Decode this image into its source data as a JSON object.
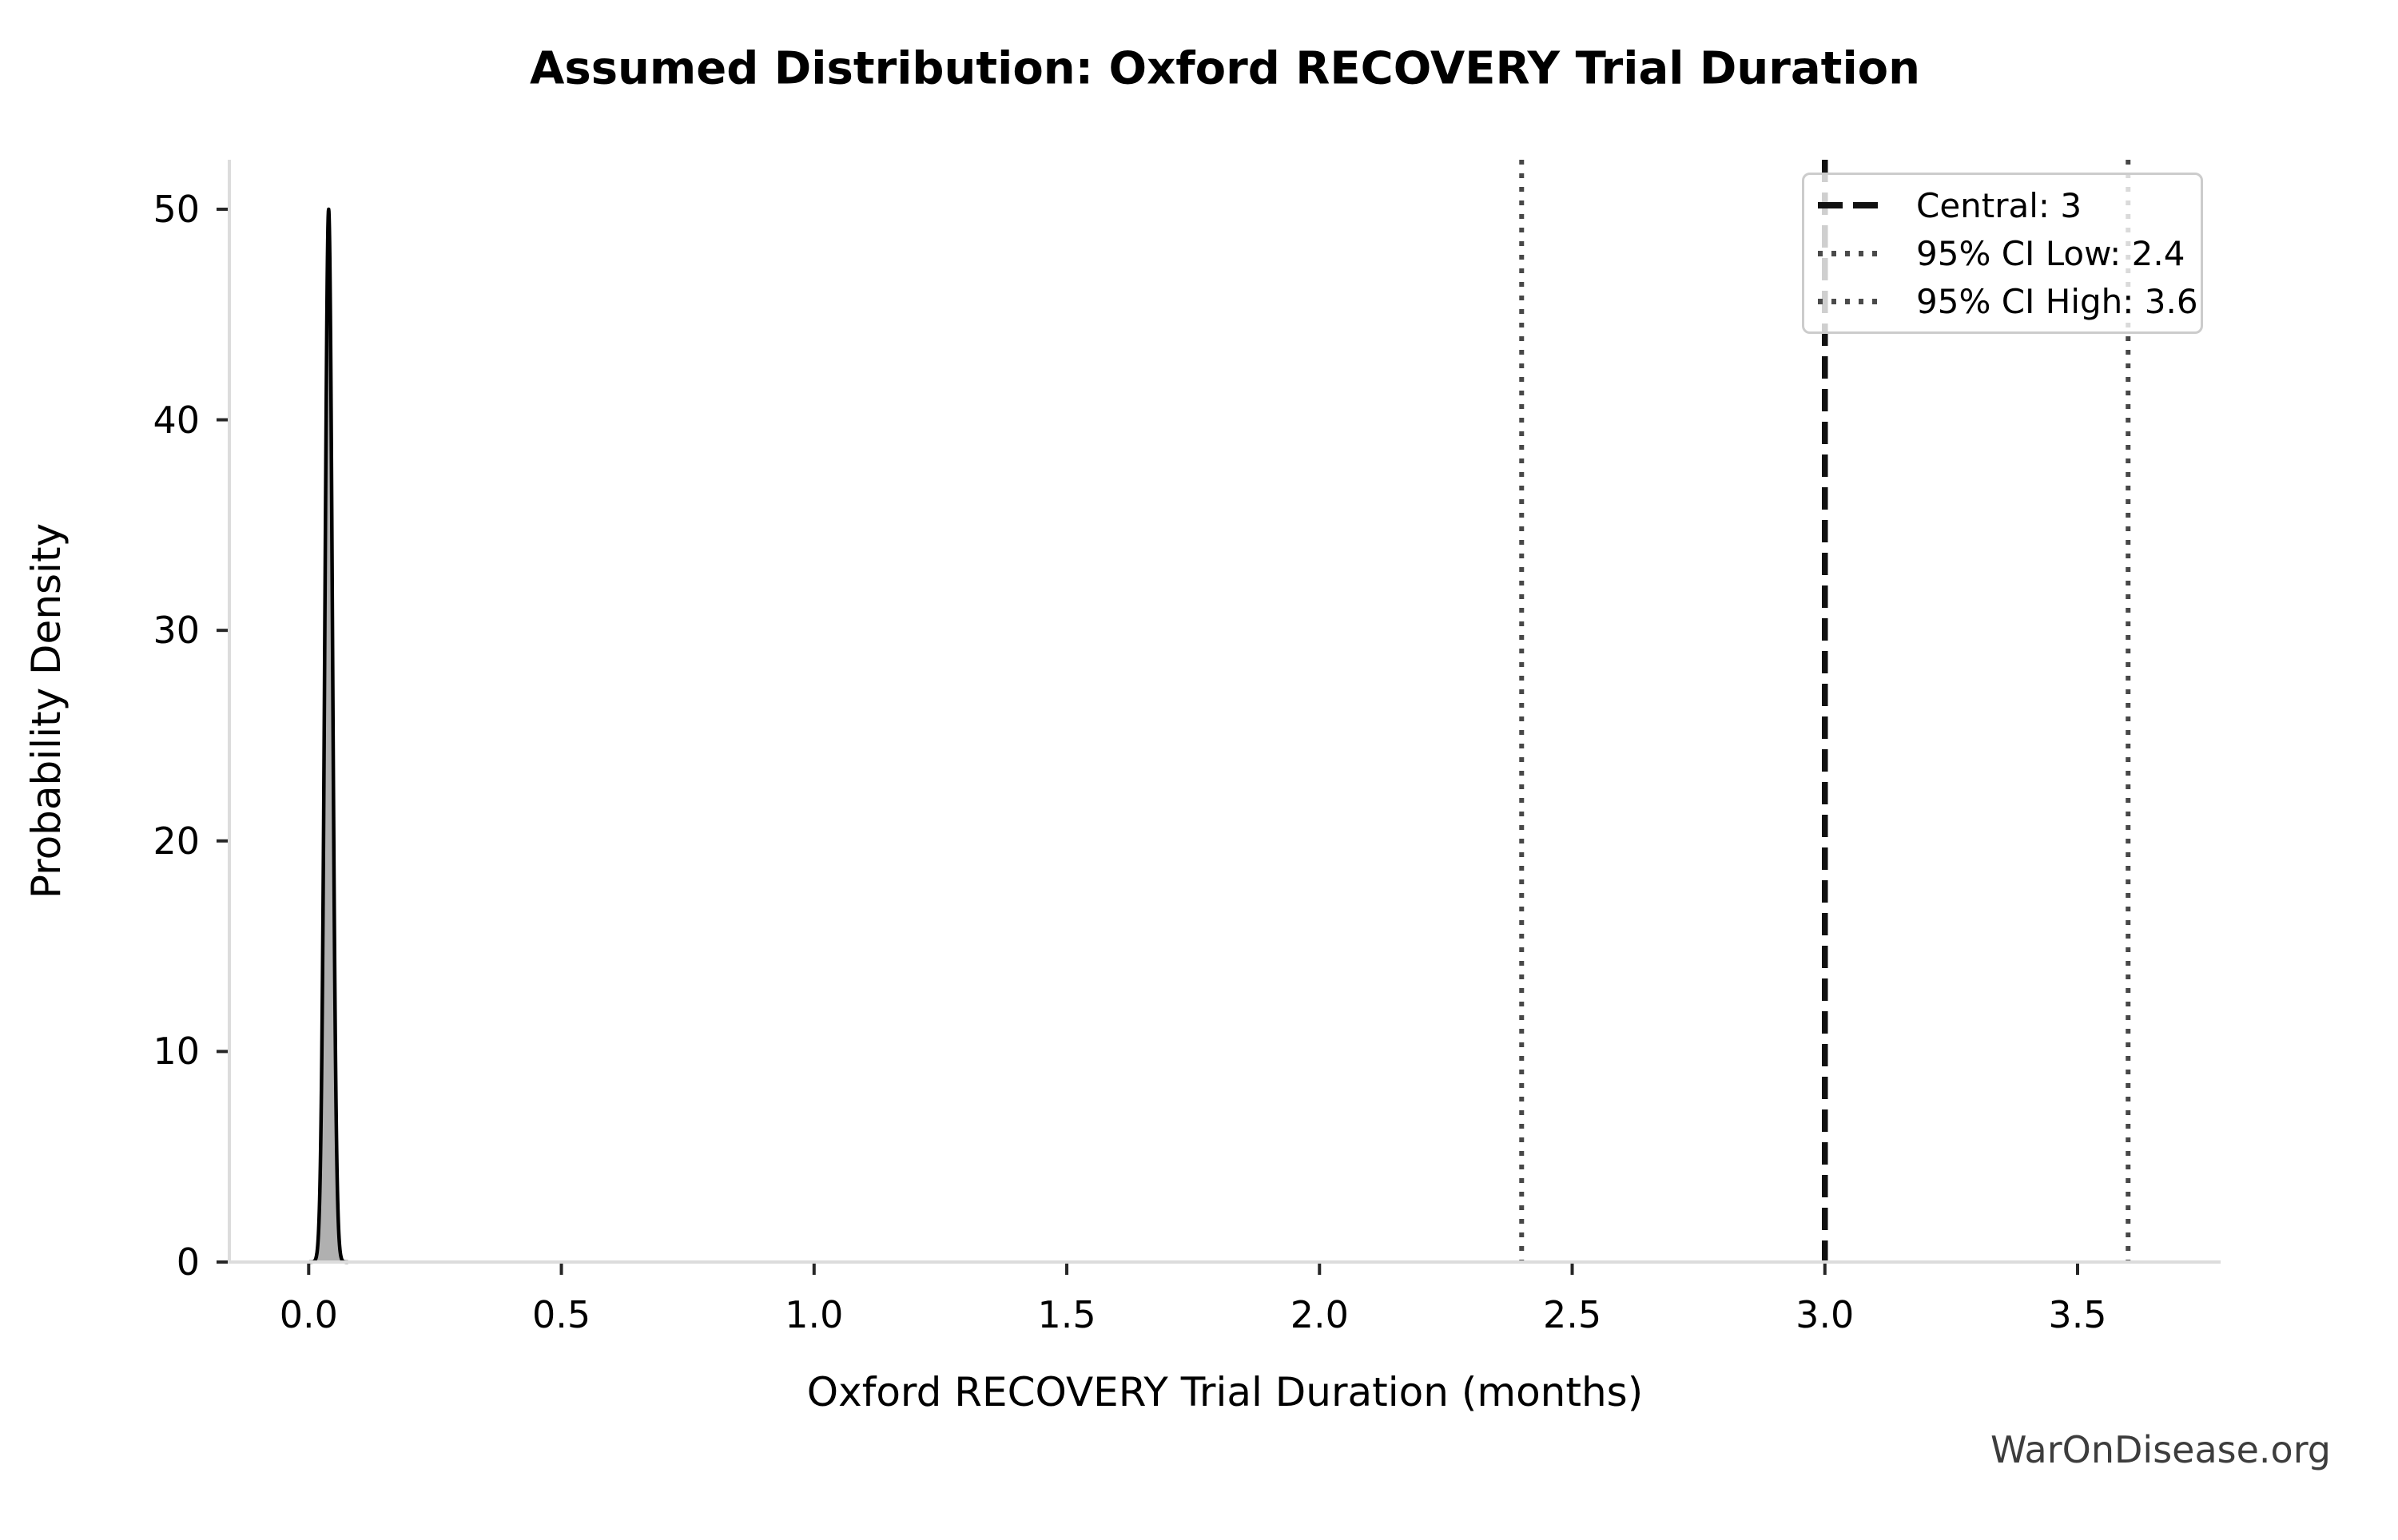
{
  "title": "Assumed Distribution: Oxford RECOVERY Trial Duration",
  "watermark": "WarOnDisease.org",
  "chart_data": {
    "type": "area",
    "title": "Assumed Distribution: Oxford RECOVERY Trial Duration",
    "xlabel": "Oxford RECOVERY Trial Duration (months)",
    "ylabel": "Probability Density",
    "xlim": [
      -0.157,
      3.783
    ],
    "ylim": [
      0,
      52.35
    ],
    "grid": false,
    "x_tick_values": [
      0.0,
      0.5,
      1.0,
      1.5,
      2.0,
      2.5,
      3.0,
      3.5
    ],
    "x_tick_labels": [
      "0.0",
      "0.5",
      "1.0",
      "1.5",
      "2.0",
      "2.5",
      "3.0",
      "3.5"
    ],
    "y_tick_values": [
      0,
      10,
      20,
      30,
      40,
      50
    ],
    "y_tick_labels": [
      "0",
      "10",
      "20",
      "30",
      "40",
      "50"
    ],
    "density_curve": {
      "description": "very narrow probability-density spike near zero",
      "center": 0.0395,
      "sigma": 0.0075,
      "peak_density": 50,
      "line_color": "#000000",
      "fill_color": "#b0b0b0"
    },
    "vlines": [
      {
        "value": 3,
        "label": "Central: 3",
        "style": "dashed",
        "color": "#111111"
      },
      {
        "value": 2.4,
        "label": "95% CI Low: 2.4",
        "style": "dotted",
        "color": "#474747"
      },
      {
        "value": 3.6,
        "label": "95% CI High: 3.6",
        "style": "dotted",
        "color": "#474747"
      }
    ],
    "legend_position": "upper right"
  },
  "legend": {
    "entries": [
      {
        "label": "Central: 3",
        "style": "dashed"
      },
      {
        "label": "95% CI Low: 2.4",
        "style": "dotted"
      },
      {
        "label": "95% CI High: 3.6",
        "style": "dotted"
      }
    ]
  }
}
